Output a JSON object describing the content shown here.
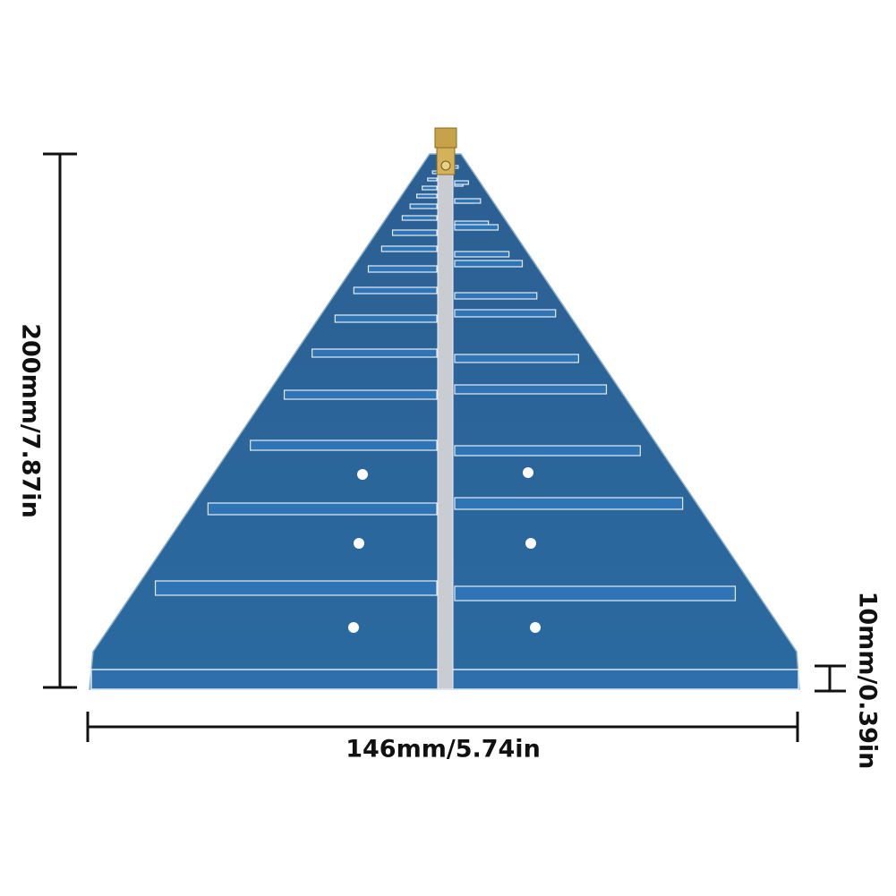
{
  "dimensions": {
    "height": "200mm/7.87in",
    "width": "146mm/5.74in",
    "thickness": "10mm/0.39in"
  }
}
